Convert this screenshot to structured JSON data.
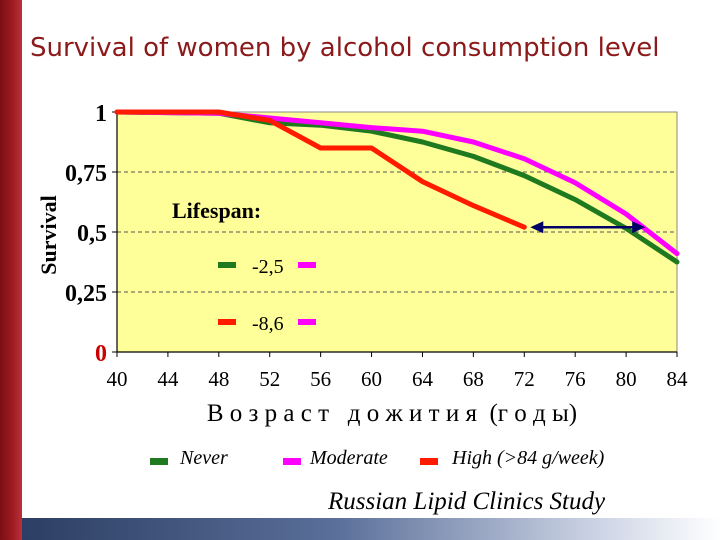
{
  "title": "Survival of women by alcohol consumption level",
  "footer": "Russian Lipid Clinics Study",
  "chart_data": {
    "type": "line",
    "title": "Survival of women by alcohol consumption level",
    "ylabel": "Survival",
    "xlabel": "В о з р а с т   д о ж и т и я  (г о д ы)",
    "xlim": [
      40,
      84
    ],
    "ylim": [
      0,
      1
    ],
    "x_ticks": [
      "40",
      "44",
      "48",
      "52",
      "56",
      "60",
      "64",
      "68",
      "72",
      "76",
      "80",
      "84"
    ],
    "y_ticks": [
      {
        "value": 1,
        "label": "1",
        "color": "#000000"
      },
      {
        "value": 0.75,
        "label": "0,75",
        "color": "#000000"
      },
      {
        "value": 0.5,
        "label": "0,5",
        "color": "#000000"
      },
      {
        "value": 0.25,
        "label": "0,25",
        "color": "#000000"
      },
      {
        "value": 0,
        "label": "0",
        "color": "#cc0000"
      }
    ],
    "grid": "horizontal dashed",
    "series": [
      {
        "name": "Never",
        "color": "#1f7a1f",
        "x": [
          40,
          48,
          52,
          56,
          60,
          64,
          68,
          72,
          76,
          80,
          84
        ],
        "y": [
          1.0,
          0.995,
          0.955,
          0.945,
          0.92,
          0.875,
          0.815,
          0.735,
          0.635,
          0.515,
          0.375
        ]
      },
      {
        "name": "Moderate",
        "color": "#ff00ff",
        "x": [
          40,
          48,
          52,
          56,
          60,
          64,
          68,
          72,
          76,
          80,
          84
        ],
        "y": [
          1.0,
          0.995,
          0.975,
          0.955,
          0.935,
          0.92,
          0.875,
          0.805,
          0.705,
          0.575,
          0.41
        ]
      },
      {
        "name": "High (>84 g/week)",
        "color": "#ff1a00",
        "x": [
          40,
          48,
          52,
          56,
          60,
          64,
          68,
          72
        ],
        "y": [
          1.0,
          1.0,
          0.965,
          0.85,
          0.85,
          0.71,
          0.61,
          0.52
        ]
      }
    ],
    "annotation": {
      "title": "Lifespan:",
      "items": [
        {
          "label": "-2,5",
          "left_color": "#1f7a1f",
          "right_color": "#ff00ff"
        },
        {
          "label": "-8,6",
          "left_color": "#ff1a00",
          "right_color": "#ff00ff"
        }
      ],
      "arrow": {
        "x_from": 72,
        "x_to": 81.5,
        "y": 0.52
      }
    },
    "legend": [
      {
        "label": "Never",
        "color": "#1f7a1f"
      },
      {
        "label": "Moderate",
        "color": "#ff00ff"
      },
      {
        "label": "High (>84 g/week)",
        "color": "#ff1a00"
      }
    ],
    "background": "#ffff99"
  }
}
